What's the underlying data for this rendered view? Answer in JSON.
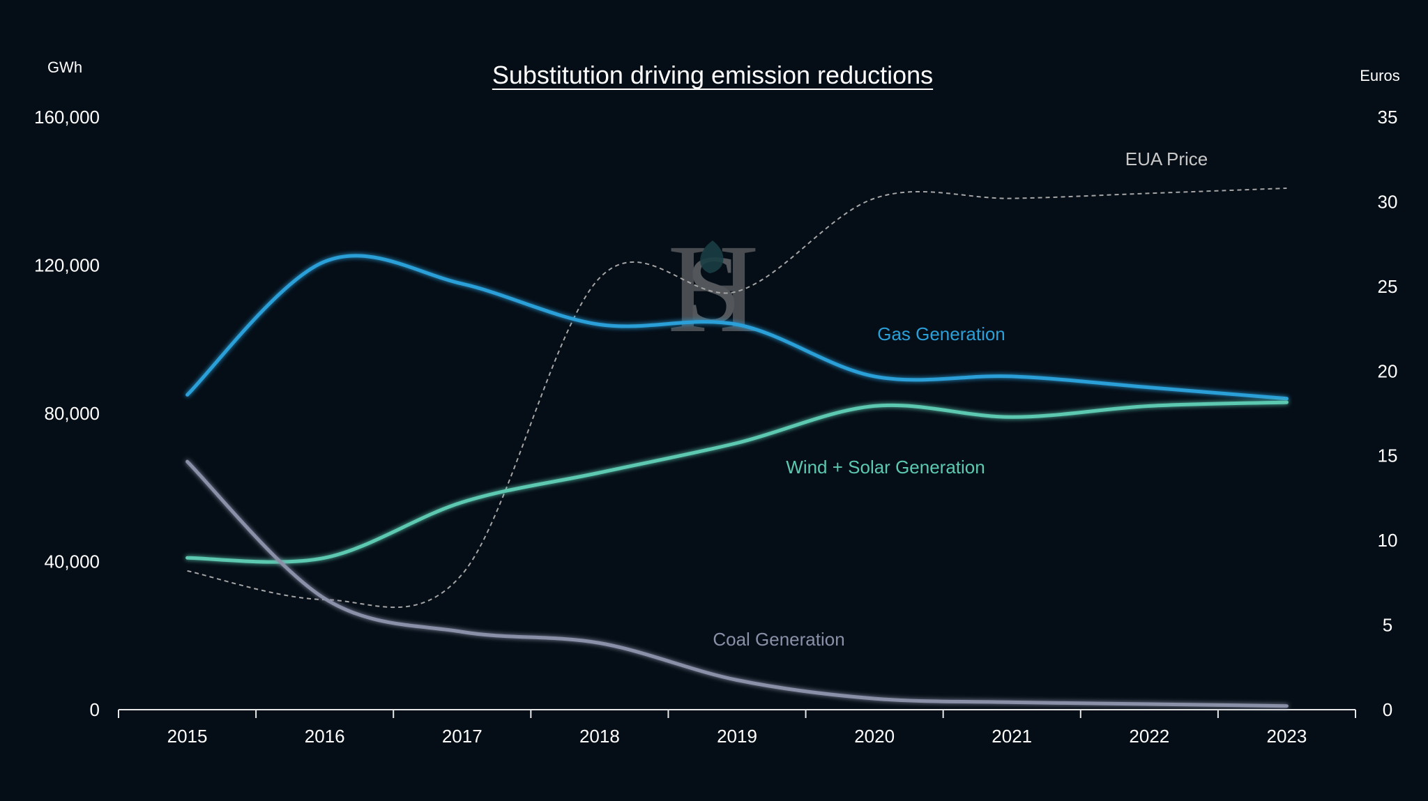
{
  "chart_data": {
    "type": "line",
    "title": "Substitution driving emission reductions",
    "y_left_unit": "GWh",
    "y_right_unit": "Euros",
    "x": [
      "2015",
      "2016",
      "2017",
      "2018",
      "2019",
      "2020",
      "2021",
      "2022",
      "2023"
    ],
    "y_left_ticks": [
      "0",
      "40,000",
      "80,000",
      "120,000",
      "160,000"
    ],
    "y_right_ticks": [
      "0",
      "5",
      "10",
      "15",
      "20",
      "25",
      "30",
      "35"
    ],
    "y_left_lim": [
      0,
      160000
    ],
    "y_right_lim": [
      0,
      35
    ],
    "grid": false,
    "series": [
      {
        "name": "Gas Generation",
        "axis": "left",
        "color": "#2a9fd8",
        "style": "solid",
        "values": [
          85000,
          121000,
          115000,
          104000,
          104000,
          90000,
          90000,
          87000,
          84000
        ]
      },
      {
        "name": "Wind + Solar Generation",
        "axis": "left",
        "color": "#5cc9b0",
        "style": "solid",
        "values": [
          41000,
          41000,
          56000,
          64000,
          72000,
          82000,
          79000,
          82000,
          83000
        ]
      },
      {
        "name": "Coal Generation",
        "axis": "left",
        "color": "#8a90a8",
        "style": "solid",
        "values": [
          67000,
          30000,
          21000,
          18000,
          8000,
          3000,
          2000,
          1500,
          1000
        ]
      },
      {
        "name": "EUA Price",
        "axis": "right",
        "color": "#a6a6a6",
        "style": "dashed",
        "values": [
          8.2,
          6.5,
          8.0,
          25.5,
          24.7,
          30.2,
          30.2,
          30.5,
          30.8
        ]
      }
    ]
  },
  "watermark": {
    "letters": "SH",
    "leaf_color": "#2f6e70"
  }
}
